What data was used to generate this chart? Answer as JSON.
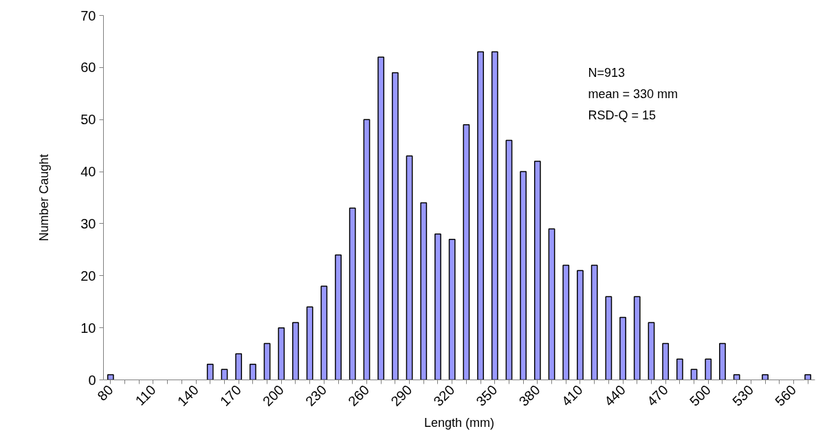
{
  "chart_data": {
    "type": "bar",
    "xlabel": "Length (mm)",
    "ylabel": "Number Caught",
    "categories": [
      "80",
      null,
      null,
      "110",
      null,
      null,
      "140",
      null,
      null,
      "170",
      null,
      null,
      "200",
      null,
      null,
      "230",
      null,
      null,
      "260",
      null,
      null,
      "290",
      null,
      null,
      "320",
      null,
      null,
      "350",
      null,
      null,
      "380",
      null,
      null,
      "410",
      null,
      null,
      "440",
      null,
      null,
      "470",
      null,
      null,
      "500",
      null,
      null,
      "530",
      null,
      null,
      "560",
      null
    ],
    "values": [
      1,
      0,
      0,
      0,
      0,
      0,
      0,
      3,
      2,
      5,
      3,
      7,
      10,
      11,
      14,
      18,
      24,
      33,
      50,
      62,
      59,
      43,
      34,
      28,
      27,
      49,
      63,
      63,
      46,
      40,
      42,
      29,
      22,
      21,
      22,
      16,
      12,
      16,
      11,
      7,
      4,
      2,
      4,
      7,
      1,
      0,
      1,
      0,
      0,
      1
    ],
    "color": "#9999ff",
    "ylim": [
      0,
      70
    ],
    "yticks": [
      0,
      10,
      20,
      30,
      40,
      50,
      60,
      70
    ],
    "grid": false,
    "annotations": [
      "N=913",
      "mean = 330 mm",
      "RSD-Q = 15"
    ]
  }
}
